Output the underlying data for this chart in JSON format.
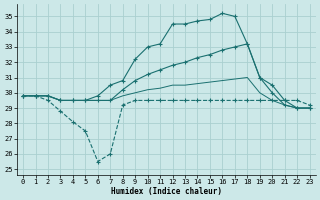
{
  "xlabel": "Humidex (Indice chaleur)",
  "bg_color": "#cce8e8",
  "grid_color": "#aad0d0",
  "line_color": "#1a7070",
  "xlim": [
    -0.5,
    23.5
  ],
  "ylim": [
    24.6,
    35.8
  ],
  "xticks": [
    0,
    1,
    2,
    3,
    4,
    5,
    6,
    7,
    8,
    9,
    10,
    11,
    12,
    13,
    14,
    15,
    16,
    17,
    18,
    19,
    20,
    21,
    22,
    23
  ],
  "yticks": [
    25,
    26,
    27,
    28,
    29,
    30,
    31,
    32,
    33,
    34,
    35
  ],
  "x_vals": [
    0,
    1,
    2,
    3,
    4,
    5,
    6,
    7,
    8,
    9,
    10,
    11,
    12,
    13,
    14,
    15,
    16,
    17,
    18,
    19,
    20,
    21,
    22,
    23
  ],
  "curve_top": [
    29.8,
    29.8,
    29.8,
    29.5,
    29.5,
    29.5,
    29.8,
    30.5,
    30.8,
    32.2,
    33.0,
    33.2,
    34.5,
    34.5,
    34.7,
    34.8,
    35.2,
    35.0,
    33.2,
    31.0,
    30.5,
    29.5,
    29.0,
    29.0
  ],
  "curve_upper": [
    29.8,
    29.8,
    29.8,
    29.5,
    29.5,
    29.5,
    29.5,
    29.5,
    30.2,
    30.8,
    31.2,
    31.5,
    31.8,
    32.0,
    32.3,
    32.5,
    32.8,
    33.0,
    33.2,
    31.0,
    30.0,
    29.2,
    29.0,
    29.0
  ],
  "curve_lower": [
    29.8,
    29.8,
    29.8,
    29.5,
    29.5,
    29.5,
    29.5,
    29.5,
    29.8,
    30.0,
    30.2,
    30.3,
    30.5,
    30.5,
    30.6,
    30.7,
    30.8,
    30.9,
    31.0,
    30.0,
    29.5,
    29.2,
    29.0,
    29.0
  ],
  "curve_bot": [
    29.8,
    29.8,
    29.5,
    28.8,
    28.1,
    27.5,
    25.5,
    26.0,
    29.2,
    29.5,
    29.5,
    29.5,
    29.5,
    29.5,
    29.5,
    29.5,
    29.5,
    29.5,
    29.5,
    29.5,
    29.5,
    29.5,
    29.5,
    29.2
  ],
  "xlabel_fontsize": 5.5,
  "tick_fontsize": 5.0
}
